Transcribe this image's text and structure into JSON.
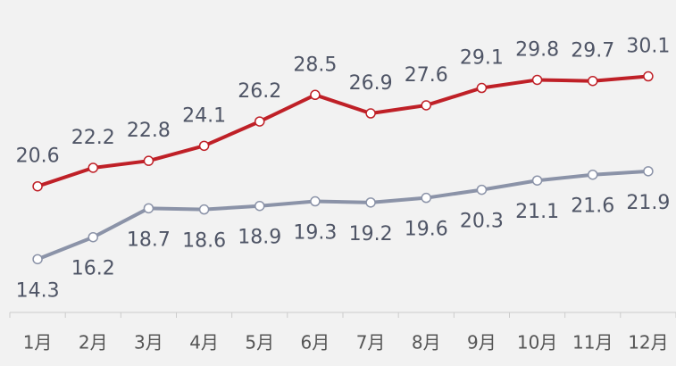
{
  "chart_data": {
    "type": "line",
    "categories": [
      "1月",
      "2月",
      "3月",
      "4月",
      "5月",
      "6月",
      "7月",
      "8月",
      "9月",
      "10月",
      "11月",
      "12月"
    ],
    "series": [
      {
        "name": null,
        "color": "#bf2027",
        "values": [
          20.6,
          22.2,
          22.8,
          24.1,
          26.2,
          28.5,
          26.9,
          27.6,
          29.1,
          29.8,
          29.7,
          30.1
        ]
      },
      {
        "name": null,
        "color": "#8b93a8",
        "values": [
          14.3,
          16.2,
          18.7,
          18.6,
          18.9,
          19.3,
          19.2,
          19.6,
          20.3,
          21.1,
          21.6,
          21.9
        ]
      }
    ],
    "ylim": [
      9.7,
      36.7
    ]
  }
}
